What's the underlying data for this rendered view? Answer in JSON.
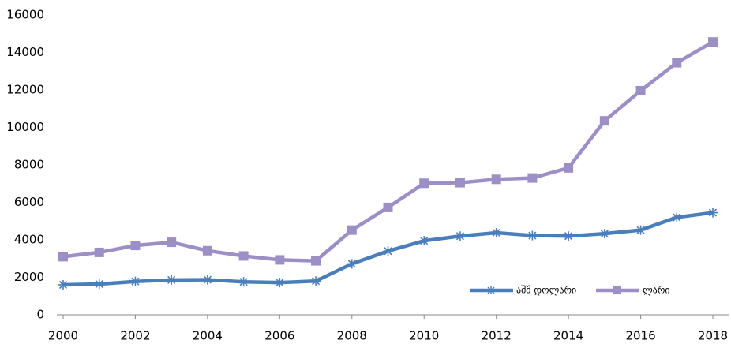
{
  "chart_data": {
    "type": "line",
    "x": [
      2000,
      2001,
      2002,
      2003,
      2004,
      2005,
      2006,
      2007,
      2008,
      2009,
      2010,
      2011,
      2012,
      2013,
      2014,
      2015,
      2016,
      2017,
      2018
    ],
    "series": [
      {
        "name": "აშშ დოლარი",
        "color": "#4a7ebb",
        "marker": "asterisk",
        "values": [
          1600,
          1640,
          1780,
          1860,
          1870,
          1760,
          1720,
          1800,
          2720,
          3400,
          3950,
          4200,
          4380,
          4230,
          4200,
          4330,
          4520,
          5200,
          5450
        ]
      },
      {
        "name": "ლარი",
        "color": "#9b8fc6",
        "marker": "square",
        "values": [
          3100,
          3330,
          3700,
          3870,
          3420,
          3140,
          2930,
          2880,
          4520,
          5730,
          7020,
          7050,
          7230,
          7300,
          7840,
          10350,
          11960,
          13450,
          14560
        ]
      }
    ],
    "xlim": [
      2000,
      2018
    ],
    "xticks": [
      2000,
      2002,
      2004,
      2006,
      2008,
      2010,
      2012,
      2014,
      2016,
      2018
    ],
    "ylim": [
      0,
      16000
    ],
    "yticks": [
      0,
      2000,
      4000,
      6000,
      8000,
      10000,
      12000,
      14000,
      16000
    ],
    "grid": false,
    "legend": "lower right"
  }
}
